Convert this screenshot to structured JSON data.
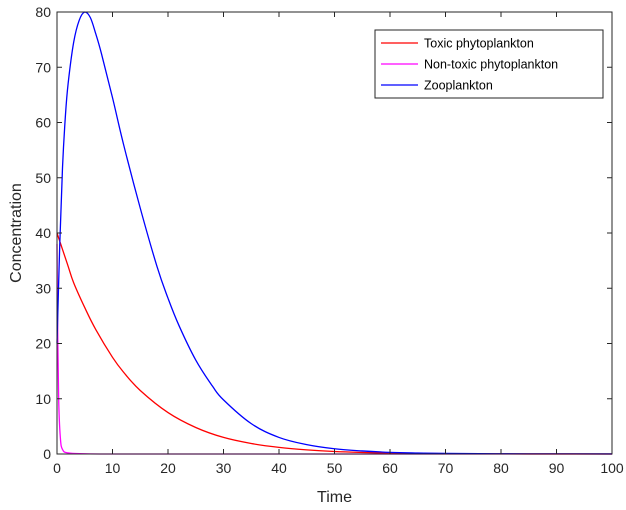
{
  "chart_data": {
    "type": "line",
    "title": "",
    "xlabel": "Time",
    "ylabel": "Concentration",
    "xlim": [
      0,
      100
    ],
    "ylim": [
      0,
      80
    ],
    "xticks": [
      0,
      10,
      20,
      30,
      40,
      50,
      60,
      70,
      80,
      90,
      100
    ],
    "yticks": [
      0,
      10,
      20,
      30,
      40,
      50,
      60,
      70,
      80
    ],
    "grid": false,
    "legend_position": "top-right",
    "series": [
      {
        "name": "Toxic phytoplankton",
        "color": "#ff0000",
        "x": [
          0,
          0.5,
          1,
          2,
          3,
          5,
          7,
          10,
          12,
          15,
          20,
          25,
          30,
          35,
          40,
          45,
          50,
          55,
          60,
          65,
          70,
          80,
          90,
          100
        ],
        "y": [
          40,
          38.5,
          37,
          34,
          31,
          26.5,
          22.5,
          17.5,
          14.8,
          11.5,
          7.5,
          4.8,
          3.0,
          1.9,
          1.2,
          0.75,
          0.45,
          0.28,
          0.17,
          0.1,
          0.06,
          0.02,
          0.01,
          0
        ]
      },
      {
        "name": "Non-toxic phytoplankton",
        "color": "#ff00ff",
        "x": [
          0,
          0.1,
          0.3,
          0.6,
          1,
          2,
          5,
          10,
          20,
          40,
          60,
          80,
          100
        ],
        "y": [
          38,
          25,
          10,
          3,
          0.8,
          0.2,
          0.05,
          0,
          0,
          0,
          0,
          0,
          0
        ]
      },
      {
        "name": "Zooplankton",
        "color": "#0000ff",
        "x": [
          0,
          0.5,
          1,
          1.5,
          2,
          3,
          4,
          5,
          6,
          7,
          8,
          10,
          12,
          15,
          18,
          20,
          22,
          25,
          28,
          30,
          35,
          40,
          45,
          50,
          55,
          60,
          65,
          70,
          80,
          90,
          100
        ],
        "y": [
          20,
          38,
          52,
          61,
          67,
          74.5,
          78.5,
          80,
          79,
          76,
          72.5,
          64.5,
          56,
          44.5,
          34,
          28.2,
          23.2,
          17,
          12.3,
          9.8,
          5.5,
          3.0,
          1.7,
          0.95,
          0.55,
          0.3,
          0.18,
          0.1,
          0.04,
          0.02,
          0.01
        ]
      }
    ]
  }
}
